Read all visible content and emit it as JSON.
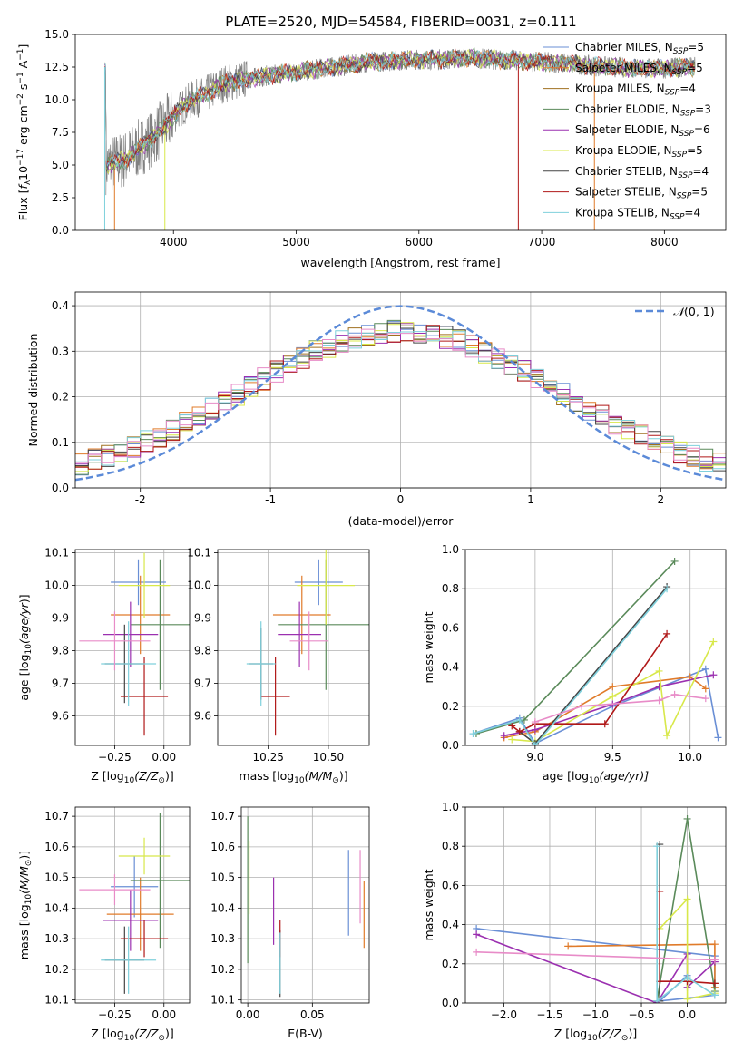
{
  "figure_title": "PLATE=2520, MJD=54584, FIBERID=0031, z=0.111",
  "chart_data": [
    {
      "id": "spectrum",
      "type": "line",
      "xlabel": "wavelength [Angstrom, rest frame]",
      "ylabel": "Flux [f_λ10^-17 erg cm^-2 s^-1 A^-1]",
      "xlim": [
        3200,
        8500
      ],
      "ylim": [
        0,
        15
      ],
      "xticks": [
        4000,
        5000,
        6000,
        7000,
        8000
      ],
      "yticks": [
        0.0,
        2.5,
        5.0,
        7.5,
        10.0,
        12.5,
        15.0
      ],
      "grid": false,
      "legend_position": "right",
      "observed_color": "#808080",
      "observed_trend": {
        "x": [
          3450,
          3600,
          3750,
          3850,
          3950,
          4050,
          4150,
          4250,
          4400,
          4600,
          4800,
          5000,
          5200,
          5400,
          5600,
          5800,
          6000,
          6200,
          6400,
          6600,
          6800,
          7000,
          7200,
          7400,
          7600,
          7800,
          8000,
          8200
        ],
        "y": [
          5.0,
          5.4,
          6.5,
          7.3,
          8.2,
          9.3,
          10.0,
          10.3,
          11.2,
          11.6,
          11.9,
          12.1,
          12.4,
          12.6,
          12.9,
          13.0,
          13.1,
          13.1,
          13.2,
          13.1,
          13.0,
          12.9,
          12.8,
          12.6,
          12.5,
          12.4,
          12.4,
          12.5
        ]
      },
      "series": [
        {
          "name": "Chabrier MILES, N_SSP=5",
          "name_main": "Chabrier MILES, N",
          "name_sub": "SSP",
          "name_tail": "=5",
          "color": "#6a8fd5"
        },
        {
          "name": "Salpeter MILES, N_SSP=5",
          "name_main": "Salpeter MILES, N",
          "name_sub": "SSP",
          "name_tail": "=5",
          "color": "#e07b2a"
        },
        {
          "name": "Kroupa MILES, N_SSP=4",
          "name_main": "Kroupa MILES, N",
          "name_sub": "SSP",
          "name_tail": "=4",
          "color": "#a07020"
        },
        {
          "name": "Chabrier ELODIE, N_SSP=3",
          "name_main": "Chabrier ELODIE, N",
          "name_sub": "SSP",
          "name_tail": "=3",
          "color": "#5a8a5a"
        },
        {
          "name": "Salpeter ELODIE, N_SSP=6",
          "name_main": "Salpeter ELODIE, N",
          "name_sub": "SSP",
          "name_tail": "=6",
          "color": "#9b30b0"
        },
        {
          "name": "Kroupa ELODIE, N_SSP=5",
          "name_main": "Kroupa ELODIE, N",
          "name_sub": "SSP",
          "name_tail": "=5",
          "color": "#d8e84a"
        },
        {
          "name": "Chabrier STELIB, N_SSP=4",
          "name_main": "Chabrier STELIB, N",
          "name_sub": "SSP",
          "name_tail": "=4",
          "color": "#444444"
        },
        {
          "name": "Salpeter STELIB, N_SSP=5",
          "name_main": "Salpeter STELIB, N",
          "name_sub": "SSP",
          "name_tail": "=5",
          "color": "#b01818"
        },
        {
          "name": "Kroupa STELIB, N_SSP=4",
          "name_main": "Kroupa STELIB, N",
          "name_sub": "SSP",
          "name_tail": "=4",
          "color": "#7fd0dc"
        }
      ]
    },
    {
      "id": "residuals",
      "type": "histogram",
      "xlabel": "(data-model)/error",
      "ylabel": "Normed distribution",
      "xlim": [
        -2.5,
        2.5
      ],
      "ylim": [
        0,
        0.43
      ],
      "xticks": [
        -2,
        -1,
        0,
        1,
        2
      ],
      "yticks": [
        0.0,
        0.1,
        0.2,
        0.3,
        0.4
      ],
      "grid": true,
      "legend_position": "top-right",
      "legend": {
        "label_prefix": "𝒩",
        "label_suffix": "(0, 1)",
        "color": "#5b8ad8"
      },
      "bin_width": 0.1,
      "bin_start": -2.5,
      "base_density": "normal(0, 1.2)",
      "series_colors": [
        "#6a8fd5",
        "#e07b2a",
        "#a07020",
        "#5a8a5a",
        "#9b30b0",
        "#d8e84a",
        "#444444",
        "#b01818",
        "#7fd0dc",
        "#e88cc8"
      ]
    },
    {
      "id": "age-vs-Z",
      "type": "errorbar",
      "xlabel_main": "Z [log",
      "xlabel_sub": "10",
      "xlabel_tail": "(Z/Z",
      "xlabel_end": ")]",
      "ylabel": "age  [log10(age/yr)]",
      "xlim": [
        -0.45,
        0.13
      ],
      "ylim": [
        9.51,
        10.11
      ],
      "xticks": [
        -0.25,
        0.0
      ],
      "xticklabels": [
        "−0.25",
        "0.00"
      ],
      "yticks": [
        9.6,
        9.7,
        9.8,
        9.9,
        10.0,
        10.1
      ],
      "grid": true,
      "points": [
        {
          "x": -0.13,
          "y": 10.01,
          "xerr": 0.14,
          "yerr": 0.07,
          "color": "#6a8fd5"
        },
        {
          "x": -0.12,
          "y": 9.91,
          "xerr": 0.15,
          "yerr": 0.12,
          "color": "#e07b2a"
        },
        {
          "x": -0.02,
          "y": 9.88,
          "xerr": 0.15,
          "yerr": 0.2,
          "color": "#5a8a5a"
        },
        {
          "x": -0.17,
          "y": 9.85,
          "xerr": 0.14,
          "yerr": 0.1,
          "color": "#9b30b0"
        },
        {
          "x": -0.1,
          "y": 10.0,
          "xerr": 0.13,
          "yerr": 0.1,
          "color": "#d8e84a"
        },
        {
          "x": -0.2,
          "y": 9.76,
          "xerr": 0.1,
          "yerr": 0.12,
          "color": "#444444"
        },
        {
          "x": -0.1,
          "y": 9.66,
          "xerr": 0.12,
          "yerr": 0.12,
          "color": "#b01818"
        },
        {
          "x": -0.18,
          "y": 9.76,
          "xerr": 0.14,
          "yerr": 0.13,
          "color": "#7fd0dc"
        },
        {
          "x": -0.25,
          "y": 9.83,
          "xerr": 0.18,
          "yerr": 0.09,
          "color": "#e88cc8"
        }
      ]
    },
    {
      "id": "age-vs-mass",
      "type": "errorbar",
      "xlabel_main": "mass [log",
      "xlabel_sub": "10",
      "xlabel_tail": "(M/M",
      "xlabel_end": ")]",
      "xlim": [
        10.04,
        10.67
      ],
      "ylim": [
        9.51,
        10.11
      ],
      "xticks": [
        10.25,
        10.5
      ],
      "xticklabels": [
        "10.25",
        "10.50"
      ],
      "yticks": [
        9.6,
        9.7,
        9.8,
        9.9,
        10.0,
        10.1
      ],
      "grid": true,
      "points": [
        {
          "x": 10.46,
          "y": 10.01,
          "xerr": 0.1,
          "yerr": 0.07,
          "color": "#6a8fd5"
        },
        {
          "x": 10.39,
          "y": 9.91,
          "xerr": 0.12,
          "yerr": 0.12,
          "color": "#e07b2a"
        },
        {
          "x": 10.49,
          "y": 9.88,
          "xerr": 0.2,
          "yerr": 0.2,
          "color": "#5a8a5a"
        },
        {
          "x": 10.38,
          "y": 9.85,
          "xerr": 0.09,
          "yerr": 0.1,
          "color": "#9b30b0"
        },
        {
          "x": 10.49,
          "y": 10.0,
          "xerr": 0.12,
          "yerr": 0.12,
          "color": "#d8e84a"
        },
        {
          "x": 10.22,
          "y": 9.76,
          "xerr": 0.05,
          "yerr": 0.11,
          "color": "#444444"
        },
        {
          "x": 10.28,
          "y": 9.66,
          "xerr": 0.06,
          "yerr": 0.12,
          "color": "#b01818"
        },
        {
          "x": 10.22,
          "y": 9.76,
          "xerr": 0.06,
          "yerr": 0.13,
          "color": "#7fd0dc"
        },
        {
          "x": 10.42,
          "y": 9.83,
          "xerr": 0.08,
          "yerr": 0.09,
          "color": "#e88cc8"
        }
      ]
    },
    {
      "id": "massweight-vs-age",
      "type": "line",
      "xlabel_main": "age  [log",
      "xlabel_sub": "10",
      "xlabel_tail": "(age/yr)]",
      "ylabel": "mass weight",
      "xlim": [
        8.55,
        10.23
      ],
      "ylim": [
        0,
        1
      ],
      "xticks": [
        9.0,
        9.5,
        10.0
      ],
      "xticklabels": [
        "9.0",
        "9.5",
        "10.0"
      ],
      "yticks": [
        0.0,
        0.2,
        0.4,
        0.6,
        0.8,
        1.0
      ],
      "grid": true,
      "series": [
        {
          "color": "#6a8fd5",
          "x": [
            8.6,
            8.9,
            9.0,
            9.5,
            10.1,
            10.18
          ],
          "y": [
            0.06,
            0.14,
            0.01,
            0.2,
            0.39,
            0.04
          ]
        },
        {
          "color": "#e07b2a",
          "x": [
            8.8,
            9.0,
            9.5,
            10.0,
            10.1
          ],
          "y": [
            0.04,
            0.07,
            0.3,
            0.35,
            0.29
          ]
        },
        {
          "color": "#5a8a5a",
          "x": [
            8.62,
            8.93,
            9.9
          ],
          "y": [
            0.06,
            0.13,
            0.94
          ]
        },
        {
          "color": "#9b30b0",
          "x": [
            8.8,
            9.0,
            9.5,
            9.8,
            10.15
          ],
          "y": [
            0.05,
            0.08,
            0.21,
            0.3,
            0.36
          ]
        },
        {
          "color": "#d8e84a",
          "x": [
            8.85,
            9.0,
            9.5,
            9.8,
            9.85,
            10.15
          ],
          "y": [
            0.03,
            0.02,
            0.25,
            0.38,
            0.05,
            0.53
          ]
        },
        {
          "color": "#444444",
          "x": [
            8.9,
            9.0,
            9.85
          ],
          "y": [
            0.07,
            0.01,
            0.81
          ]
        },
        {
          "color": "#b01818",
          "x": [
            8.85,
            8.9,
            9.0,
            9.45,
            9.85
          ],
          "y": [
            0.1,
            0.07,
            0.11,
            0.11,
            0.57
          ]
        },
        {
          "color": "#7fd0dc",
          "x": [
            8.6,
            8.9,
            9.0,
            9.85
          ],
          "y": [
            0.06,
            0.13,
            0.0,
            0.8
          ]
        },
        {
          "color": "#e88cc8",
          "x": [
            9.0,
            9.3,
            9.8,
            9.9,
            10.1
          ],
          "y": [
            0.12,
            0.2,
            0.23,
            0.26,
            0.24
          ]
        }
      ]
    },
    {
      "id": "mass-vs-Z",
      "type": "errorbar",
      "xlabel_main": "Z [log",
      "xlabel_sub": "10",
      "xlabel_tail": "(Z/Z",
      "xlabel_end": ")]",
      "ylabel": "mass [log10(M/M⊙)]",
      "xlim": [
        -0.45,
        0.13
      ],
      "ylim": [
        10.09,
        10.73
      ],
      "xticks": [
        -0.25,
        0.0
      ],
      "xticklabels": [
        "−0.25",
        "0.00"
      ],
      "yticks": [
        10.1,
        10.2,
        10.3,
        10.4,
        10.5,
        10.6,
        10.7
      ],
      "grid": true,
      "points": [
        {
          "x": -0.15,
          "y": 10.47,
          "xerr": 0.12,
          "yerr": 0.1,
          "color": "#6a8fd5"
        },
        {
          "x": -0.12,
          "y": 10.38,
          "xerr": 0.17,
          "yerr": 0.12,
          "color": "#e07b2a"
        },
        {
          "x": -0.02,
          "y": 10.49,
          "xerr": 0.15,
          "yerr": 0.22,
          "color": "#5a8a5a"
        },
        {
          "x": -0.17,
          "y": 10.36,
          "xerr": 0.14,
          "yerr": 0.1,
          "color": "#9b30b0"
        },
        {
          "x": -0.1,
          "y": 10.57,
          "xerr": 0.13,
          "yerr": 0.06,
          "color": "#d8e84a"
        },
        {
          "x": -0.2,
          "y": 10.23,
          "xerr": 0.1,
          "yerr": 0.11,
          "color": "#444444"
        },
        {
          "x": -0.1,
          "y": 10.3,
          "xerr": 0.12,
          "yerr": 0.06,
          "color": "#b01818"
        },
        {
          "x": -0.18,
          "y": 10.23,
          "xerr": 0.14,
          "yerr": 0.11,
          "color": "#7fd0dc"
        },
        {
          "x": -0.25,
          "y": 10.46,
          "xerr": 0.18,
          "yerr": 0.05,
          "color": "#e88cc8"
        }
      ]
    },
    {
      "id": "mass-vs-ebv",
      "type": "errorbar",
      "xlabel": "E(B-V)",
      "xlim": [
        -0.005,
        0.094
      ],
      "ylim": [
        10.09,
        10.73
      ],
      "xticks": [
        0.0,
        0.05
      ],
      "xticklabels": [
        "0.00",
        "0.05"
      ],
      "yticks": [
        10.1,
        10.2,
        10.3,
        10.4,
        10.5,
        10.6,
        10.7
      ],
      "grid": true,
      "points": [
        {
          "x": 0.078,
          "y": 10.45,
          "xerr": 0,
          "yerr": 0.14,
          "color": "#6a8fd5"
        },
        {
          "x": 0.09,
          "y": 10.38,
          "xerr": 0,
          "yerr": 0.11,
          "color": "#e07b2a"
        },
        {
          "x": 0.0,
          "y": 10.46,
          "xerr": 0,
          "yerr": 0.24,
          "color": "#5a8a5a"
        },
        {
          "x": 0.02,
          "y": 10.39,
          "xerr": 0,
          "yerr": 0.11,
          "color": "#9b30b0"
        },
        {
          "x": 0.001,
          "y": 10.5,
          "xerr": 0,
          "yerr": 0.12,
          "color": "#d8e84a"
        },
        {
          "x": 0.025,
          "y": 10.22,
          "xerr": 0,
          "yerr": 0.11,
          "color": "#444444"
        },
        {
          "x": 0.025,
          "y": 10.3,
          "xerr": 0,
          "yerr": 0.06,
          "color": "#b01818"
        },
        {
          "x": 0.025,
          "y": 10.22,
          "xerr": 0,
          "yerr": 0.1,
          "color": "#7fd0dc"
        },
        {
          "x": 0.087,
          "y": 10.47,
          "xerr": 0,
          "yerr": 0.12,
          "color": "#e88cc8"
        }
      ]
    },
    {
      "id": "massweight-vs-Z",
      "type": "line",
      "xlabel_main": "Z [log",
      "xlabel_sub": "10",
      "xlabel_tail": "(Z/Z",
      "xlabel_end": ")]",
      "ylabel": "mass weight",
      "xlim": [
        -2.42,
        0.42
      ],
      "ylim": [
        0,
        1
      ],
      "xticks": [
        -2.0,
        -1.5,
        -1.0,
        -0.5,
        0.0
      ],
      "xticklabels": [
        "−2.0",
        "−1.5",
        "−1.0",
        "−0.5",
        "0.0"
      ],
      "yticks": [
        0.0,
        0.2,
        0.4,
        0.6,
        0.8,
        1.0
      ],
      "grid": true,
      "series": [
        {
          "color": "#6a8fd5",
          "x": [
            -2.3,
            0.3,
            0.3,
            -0.3,
            0.0
          ],
          "y": [
            0.38,
            0.24,
            0.04,
            0.01,
            0.14
          ]
        },
        {
          "color": "#e07b2a",
          "x": [
            -1.3,
            0.3,
            0.3
          ],
          "y": [
            0.29,
            0.3,
            0.08
          ]
        },
        {
          "color": "#5a8a5a",
          "x": [
            -0.33,
            0.0,
            0.3,
            0.3
          ],
          "y": [
            0.01,
            0.94,
            0.06,
            0.1
          ]
        },
        {
          "color": "#9b30b0",
          "x": [
            -2.3,
            -0.33,
            0.0,
            0.0,
            0.3
          ],
          "y": [
            0.35,
            0.0,
            0.25,
            0.08,
            0.21
          ]
        },
        {
          "color": "#d8e84a",
          "x": [
            -0.3,
            0.0,
            0.0,
            0.3
          ],
          "y": [
            0.38,
            0.53,
            0.02,
            0.05
          ]
        },
        {
          "color": "#444444",
          "x": [
            -0.3,
            -0.3
          ],
          "y": [
            0.81,
            0.01
          ]
        },
        {
          "color": "#b01818",
          "x": [
            -0.3,
            -0.3,
            0.0,
            0.3
          ],
          "y": [
            0.57,
            0.11,
            0.11,
            0.1
          ]
        },
        {
          "color": "#7fd0dc",
          "x": [
            -0.33,
            -0.33,
            0.0,
            0.3
          ],
          "y": [
            0.8,
            0.01,
            0.13,
            0.04
          ]
        },
        {
          "color": "#e88cc8",
          "x": [
            -2.3,
            0.3
          ],
          "y": [
            0.26,
            0.22
          ]
        }
      ]
    }
  ]
}
